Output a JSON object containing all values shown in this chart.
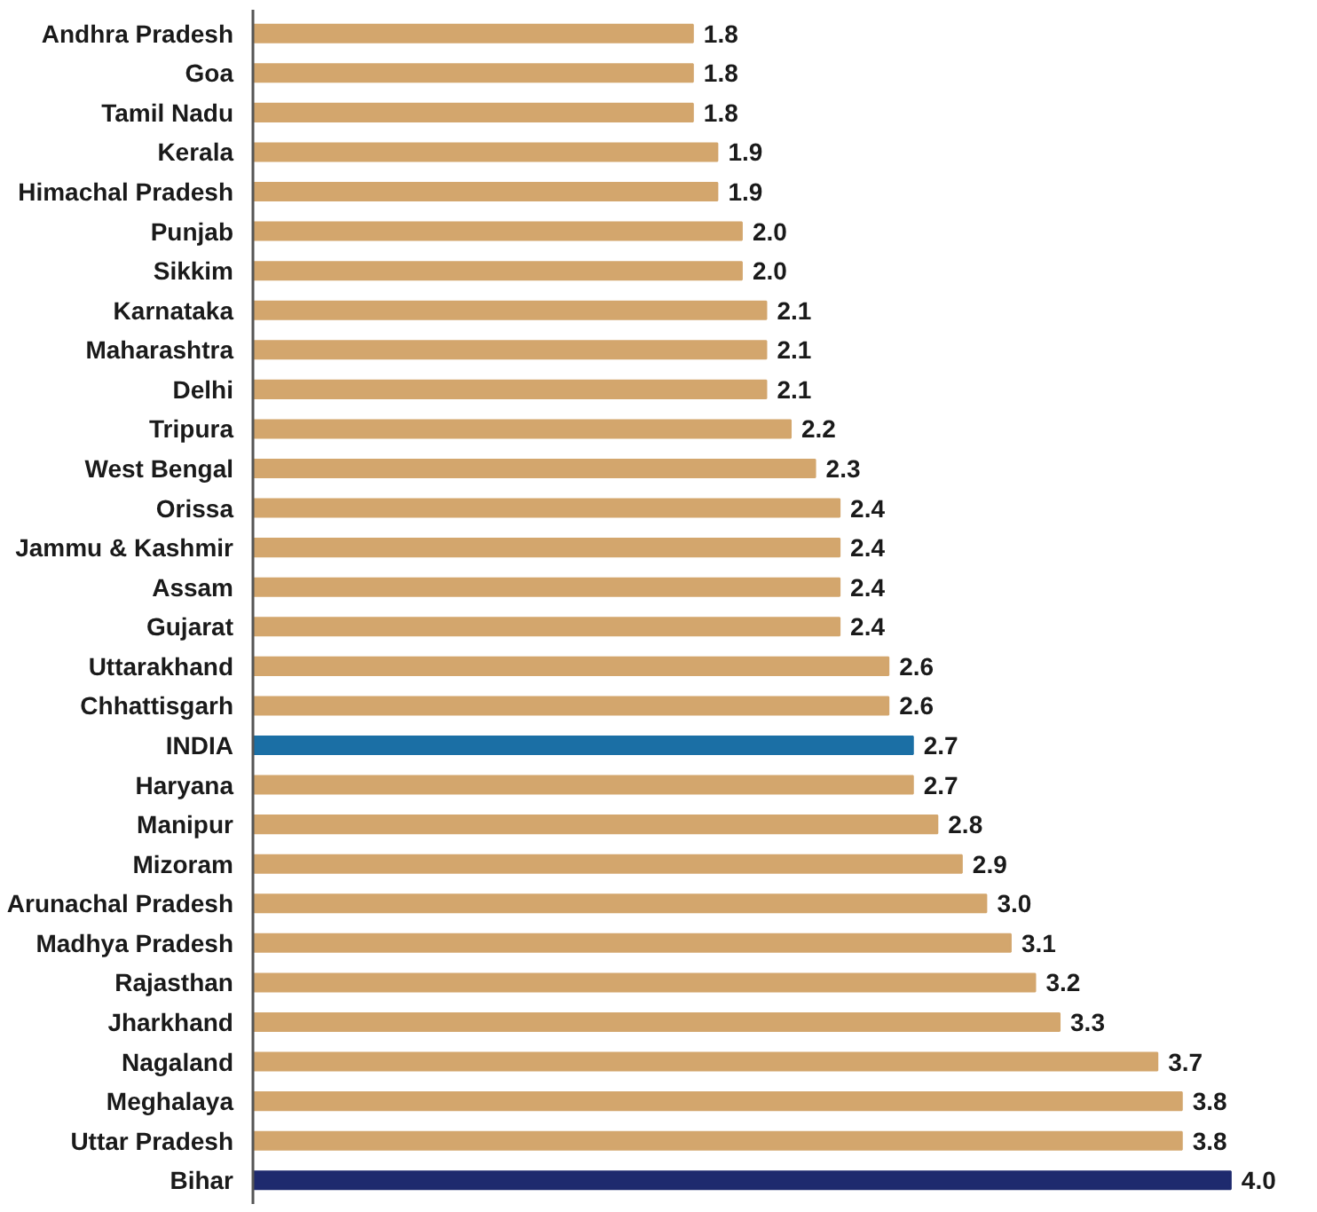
{
  "chart_data": {
    "type": "bar",
    "orientation": "horizontal",
    "categories": [
      "Andhra Pradesh",
      "Goa",
      "Tamil Nadu",
      "Kerala",
      "Himachal Pradesh",
      "Punjab",
      "Sikkim",
      "Karnataka",
      "Maharashtra",
      "Delhi",
      "Tripura",
      "West Bengal",
      "Orissa",
      "Jammu & Kashmir",
      "Assam",
      "Gujarat",
      "Uttarakhand",
      "Chhattisgarh",
      "INDIA",
      "Haryana",
      "Manipur",
      "Mizoram",
      "Arunachal Pradesh",
      "Madhya Pradesh",
      "Rajasthan",
      "Jharkhand",
      "Nagaland",
      "Meghalaya",
      "Uttar Pradesh",
      "Bihar"
    ],
    "values": [
      1.8,
      1.8,
      1.8,
      1.9,
      1.9,
      2.0,
      2.0,
      2.1,
      2.1,
      2.1,
      2.2,
      2.3,
      2.4,
      2.4,
      2.4,
      2.4,
      2.6,
      2.6,
      2.7,
      2.7,
      2.8,
      2.9,
      3.0,
      3.1,
      3.2,
      3.3,
      3.7,
      3.8,
      3.8,
      4.0
    ],
    "value_labels": [
      "1.8",
      "1.8",
      "1.8",
      "1.9",
      "1.9",
      "2.0",
      "2.0",
      "2.1",
      "2.1",
      "2.1",
      "2.2",
      "2.3",
      "2.4",
      "2.4",
      "2.4",
      "2.4",
      "2.6",
      "2.6",
      "2.7",
      "2.7",
      "2.8",
      "2.9",
      "3.0",
      "3.1",
      "3.2",
      "3.3",
      "3.7",
      "3.8",
      "3.8",
      "4.0"
    ],
    "colors": [
      "#d3a66d",
      "#d3a66d",
      "#d3a66d",
      "#d3a66d",
      "#d3a66d",
      "#d3a66d",
      "#d3a66d",
      "#d3a66d",
      "#d3a66d",
      "#d3a66d",
      "#d3a66d",
      "#d3a66d",
      "#d3a66d",
      "#d3a66d",
      "#d3a66d",
      "#d3a66d",
      "#d3a66d",
      "#d3a66d",
      "#1b6fa5",
      "#d3a66d",
      "#d3a66d",
      "#d3a66d",
      "#d3a66d",
      "#d3a66d",
      "#d3a66d",
      "#d3a66d",
      "#d3a66d",
      "#d3a66d",
      "#d3a66d",
      "#1e2a6e"
    ]
  }
}
